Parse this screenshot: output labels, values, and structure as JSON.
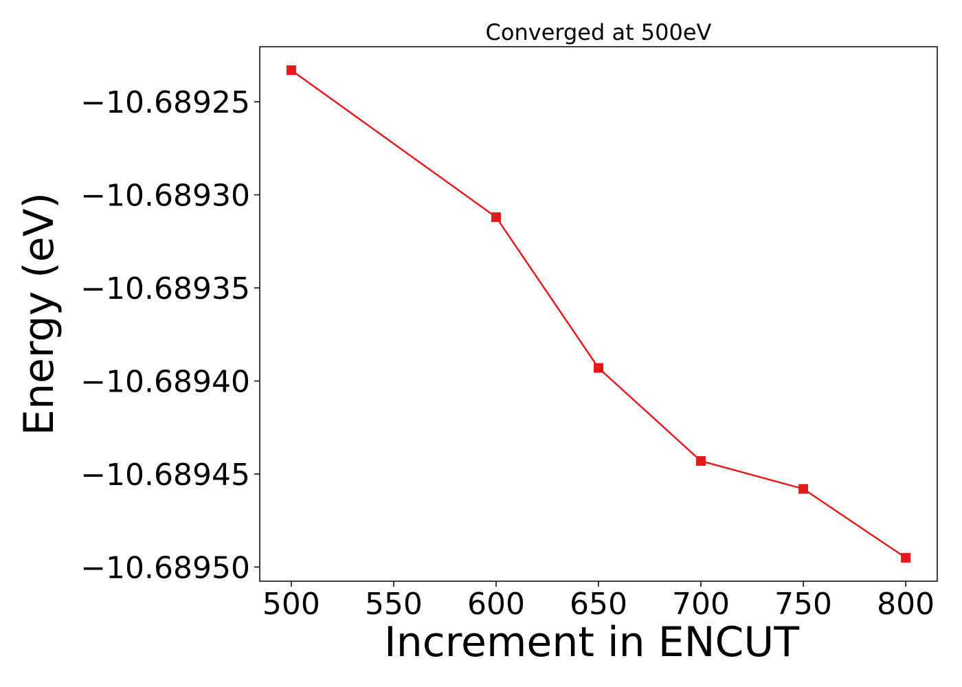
{
  "chart_data": {
    "type": "line",
    "title": "Converged at 500eV",
    "xlabel": "Increment in ENCUT",
    "ylabel": "Energy (eV)",
    "x": [
      500,
      600,
      650,
      700,
      750,
      800
    ],
    "series": [
      {
        "values": [
          -10.689233,
          -10.689312,
          -10.689393,
          -10.689443,
          -10.689458,
          -10.689495
        ],
        "color": "#e31a1c",
        "marker": "square"
      }
    ],
    "xticks": [
      500,
      550,
      600,
      650,
      700,
      750,
      800
    ],
    "xtick_labels": [
      "500",
      "550",
      "600",
      "650",
      "700",
      "750",
      "800"
    ],
    "yticks": [
      -10.68925,
      -10.6893,
      -10.68935,
      -10.6894,
      -10.68945,
      -10.6895
    ],
    "ytick_labels": [
      "−10.68925",
      "−10.68930",
      "−10.68935",
      "−10.68940",
      "−10.68945",
      "−10.68950"
    ],
    "xlim": [
      484.6,
      815.4
    ],
    "ylim": [
      -10.6895076,
      -10.6892204
    ],
    "grid": false,
    "legend": false
  }
}
